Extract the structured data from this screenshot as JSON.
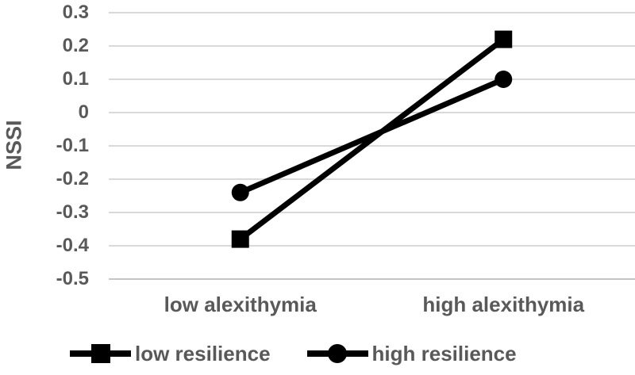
{
  "chart_data": {
    "type": "line",
    "title": "",
    "ylabel": "NSSI",
    "xlabel": "",
    "ylim": [
      -0.5,
      0.3
    ],
    "ytick_step": 0.1,
    "yticks": [
      "0.3",
      "0.2",
      "0.1",
      "0",
      "-0.1",
      "-0.2",
      "-0.3",
      "-0.4",
      "-0.5"
    ],
    "categories": [
      "low alexithymia",
      "high alexithymia"
    ],
    "series": [
      {
        "name": "low resilience",
        "marker": "square",
        "values": [
          -0.38,
          0.22
        ]
      },
      {
        "name": "high resilience",
        "marker": "circle",
        "values": [
          -0.24,
          0.1
        ]
      }
    ],
    "grid": true,
    "legend_position": "bottom",
    "colors": {
      "line": "#000000",
      "text": "#595959",
      "gridline": "#d9d9d9",
      "axis": "#c6c6c6",
      "background": "#ffffff"
    }
  }
}
